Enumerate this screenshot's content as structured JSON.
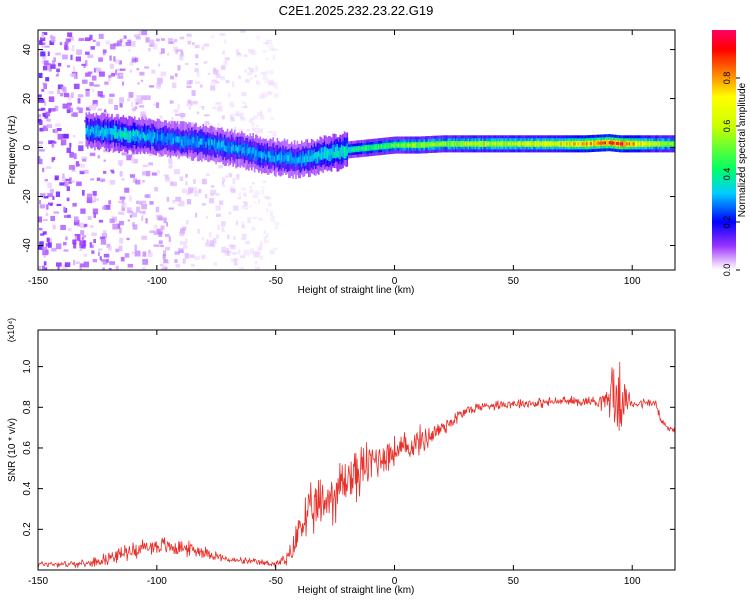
{
  "title": "C2E1.2025.232.23.22.G19",
  "chart_data": [
    {
      "type": "heatmap",
      "title": "C2E1.2025.232.23.22.G19",
      "xlabel": "Height of straight line (km)",
      "ylabel": "Frequency (Hz)",
      "xlim": [
        -150,
        118
      ],
      "ylim": [
        -50,
        48
      ],
      "xticks": [
        -150,
        -100,
        -50,
        0,
        50,
        100
      ],
      "yticks": [
        -40,
        -20,
        0,
        20,
        40
      ],
      "colorbar": {
        "label": "Normalized spectral amplitude",
        "range": [
          0.0,
          1.0
        ],
        "ticks": [
          0.0,
          0.2,
          0.4,
          0.6,
          0.8
        ],
        "tick_labels": [
          "0.0",
          "0.2",
          "0.4",
          "0.6",
          "0.8"
        ]
      },
      "ridge": {
        "x": [
          -130,
          -120,
          -110,
          -100,
          -90,
          -80,
          -70,
          -60,
          -50,
          -40,
          -30,
          -20,
          -10,
          0,
          10,
          20,
          30,
          40,
          50,
          60,
          70,
          80,
          90,
          95,
          100,
          110,
          118
        ],
        "frequency_hz": [
          7,
          6,
          5,
          4,
          3,
          2,
          0,
          -2,
          -4,
          -5,
          -3,
          -1,
          0,
          1,
          1,
          1.5,
          1.5,
          1.5,
          1.5,
          1.5,
          1.5,
          1.5,
          2,
          1.5,
          1.5,
          1.5,
          1.5
        ],
        "amplitude": [
          0.3,
          0.35,
          0.35,
          0.3,
          0.3,
          0.3,
          0.3,
          0.3,
          0.3,
          0.3,
          0.35,
          0.4,
          0.45,
          0.5,
          0.55,
          0.55,
          0.6,
          0.6,
          0.6,
          0.65,
          0.7,
          0.8,
          0.85,
          0.9,
          0.8,
          0.6,
          0.55
        ]
      },
      "noise_region_x": [
        -150,
        -50
      ]
    },
    {
      "type": "line",
      "xlabel": "Height of straight line (km)",
      "ylabel": "SNR (10 * v/v)",
      "yscale_label": "(x10⁴)",
      "xlim": [
        -150,
        118
      ],
      "ylim": [
        0.0,
        1.18
      ],
      "xticks": [
        -150,
        -100,
        -50,
        0,
        50,
        100
      ],
      "yticks": [
        0.2,
        0.4,
        0.6,
        0.8,
        1.0
      ],
      "ytick_labels": [
        "0.2",
        "0.4",
        "0.6",
        "0.8",
        "1.0"
      ],
      "color": "#e8302a",
      "x": [
        -150,
        -130,
        -120,
        -110,
        -100,
        -90,
        -80,
        -70,
        -60,
        -50,
        -45,
        -42,
        -40,
        -35,
        -30,
        -25,
        -20,
        -15,
        -10,
        -5,
        0,
        5,
        10,
        15,
        20,
        25,
        30,
        35,
        40,
        50,
        60,
        70,
        80,
        85,
        90,
        92,
        94,
        96,
        100,
        105,
        110,
        112,
        115,
        118
      ],
      "mean": [
        0.03,
        0.03,
        0.06,
        0.1,
        0.12,
        0.11,
        0.09,
        0.05,
        0.04,
        0.03,
        0.05,
        0.12,
        0.22,
        0.28,
        0.33,
        0.38,
        0.45,
        0.48,
        0.53,
        0.56,
        0.58,
        0.6,
        0.63,
        0.66,
        0.7,
        0.74,
        0.78,
        0.8,
        0.81,
        0.82,
        0.82,
        0.83,
        0.83,
        0.83,
        0.84,
        0.9,
        0.8,
        0.84,
        0.82,
        0.82,
        0.82,
        0.73,
        0.7,
        0.69
      ],
      "noise_amp": [
        0.02,
        0.02,
        0.04,
        0.05,
        0.06,
        0.05,
        0.04,
        0.02,
        0.02,
        0.02,
        0.05,
        0.1,
        0.14,
        0.16,
        0.18,
        0.18,
        0.18,
        0.16,
        0.14,
        0.12,
        0.1,
        0.1,
        0.09,
        0.08,
        0.06,
        0.05,
        0.04,
        0.03,
        0.03,
        0.03,
        0.03,
        0.03,
        0.03,
        0.04,
        0.08,
        0.25,
        0.3,
        0.1,
        0.04,
        0.03,
        0.03,
        0.04,
        0.03,
        0.03
      ]
    }
  ]
}
